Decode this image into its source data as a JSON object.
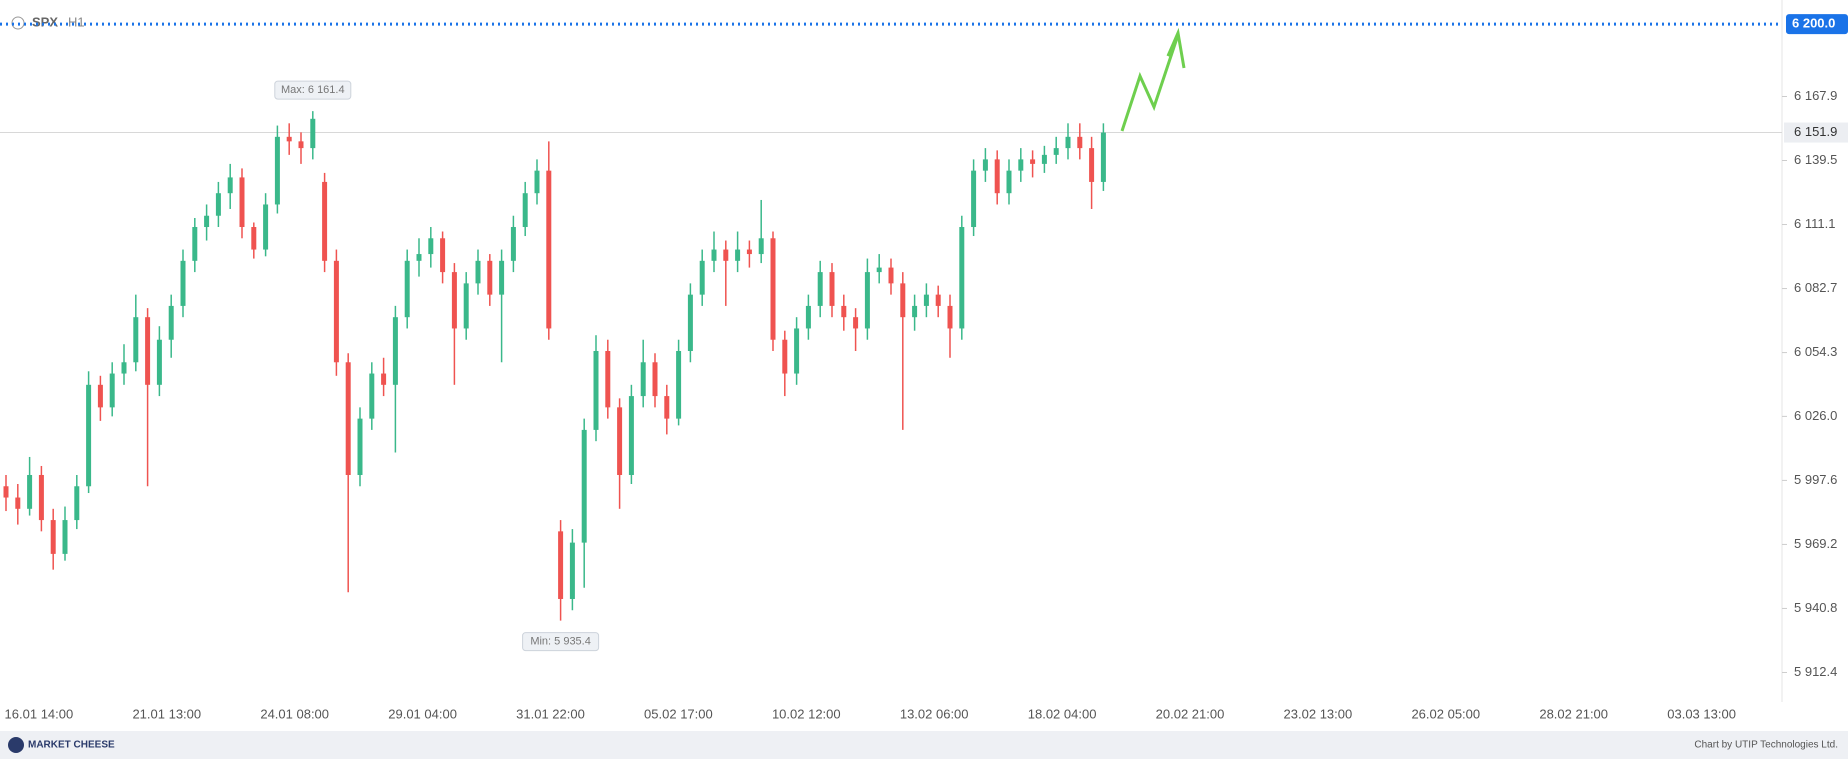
{
  "header": {
    "symbol": "SPX",
    "timeframe": "H1"
  },
  "footer": {
    "logo": "MARKET CHEESE",
    "credit": "Chart by UTIP Technologies Ltd."
  },
  "chart_data": {
    "type": "candlestick",
    "up_color": "#3ab88a",
    "down_color": "#ef5350",
    "ylim": [
      5899.3,
      6210.7
    ],
    "yticks": [
      {
        "value": 5912.4,
        "label": "5 912.4"
      },
      {
        "value": 5940.8,
        "label": "5 940.8"
      },
      {
        "value": 5969.2,
        "label": "5 969.2"
      },
      {
        "value": 5997.6,
        "label": "5 997.6"
      },
      {
        "value": 6026.0,
        "label": "6 026.0"
      },
      {
        "value": 6054.3,
        "label": "6 054.3"
      },
      {
        "value": 6082.7,
        "label": "6 082.7"
      },
      {
        "value": 6111.1,
        "label": "6 111.1"
      },
      {
        "value": 6139.5,
        "label": "6 139.5"
      },
      {
        "value": 6167.9,
        "label": "6 167.9"
      }
    ],
    "x_labels": [
      "16.01 14:00",
      "21.01 13:00",
      "24.01 08:00",
      "29.01 04:00",
      "31.01 22:00",
      "05.02 17:00",
      "10.02 12:00",
      "13.02 06:00",
      "18.02 04:00",
      "20.02 21:00",
      "23.02 13:00",
      "26.02 05:00",
      "28.02 21:00",
      "03.03 13:00"
    ],
    "level": {
      "value": 6200.0,
      "label": "6 200.0",
      "color": "#1a73e8"
    },
    "last_price": {
      "value": 6151.9,
      "label": "6 151.9"
    },
    "max_label": "Max: 6 161.4",
    "min_label": "Min: 5 935.4",
    "ohlc": [
      [
        5995,
        6000,
        5984,
        5990
      ],
      [
        5990,
        5996,
        5978,
        5985
      ],
      [
        5985,
        6008,
        5982,
        6000
      ],
      [
        6000,
        6004,
        5975,
        5980
      ],
      [
        5980,
        5985,
        5958,
        5965
      ],
      [
        5965,
        5986,
        5962,
        5980
      ],
      [
        5980,
        6000,
        5976,
        5995
      ],
      [
        5995,
        6046,
        5992,
        6040
      ],
      [
        6040,
        6044,
        6024,
        6030
      ],
      [
        6030,
        6050,
        6026,
        6045
      ],
      [
        6045,
        6058,
        6040,
        6050
      ],
      [
        6050,
        6080,
        6046,
        6070
      ],
      [
        6070,
        6074,
        5995,
        6040
      ],
      [
        6040,
        6066,
        6035,
        6060
      ],
      [
        6060,
        6080,
        6052,
        6075
      ],
      [
        6075,
        6100,
        6070,
        6095
      ],
      [
        6095,
        6114,
        6090,
        6110
      ],
      [
        6110,
        6120,
        6104,
        6115
      ],
      [
        6115,
        6130,
        6110,
        6125
      ],
      [
        6125,
        6138,
        6118,
        6132
      ],
      [
        6132,
        6136,
        6105,
        6110
      ],
      [
        6110,
        6112,
        6096,
        6100
      ],
      [
        6100,
        6125,
        6097,
        6120
      ],
      [
        6120,
        6155,
        6116,
        6150
      ],
      [
        6150,
        6156,
        6142,
        6148
      ],
      [
        6148,
        6152,
        6138,
        6145
      ],
      [
        6145,
        6161.4,
        6140,
        6158
      ],
      [
        6130,
        6134,
        6090,
        6095
      ],
      [
        6095,
        6100,
        6044,
        6050
      ],
      [
        6050,
        6054,
        5948,
        6000
      ],
      [
        6000,
        6030,
        5995,
        6025
      ],
      [
        6025,
        6050,
        6020,
        6045
      ],
      [
        6045,
        6052,
        6035,
        6040
      ],
      [
        6040,
        6075,
        6010,
        6070
      ],
      [
        6070,
        6100,
        6065,
        6095
      ],
      [
        6095,
        6105,
        6088,
        6098
      ],
      [
        6098,
        6110,
        6092,
        6105
      ],
      [
        6105,
        6108,
        6085,
        6090
      ],
      [
        6090,
        6094,
        6040,
        6065
      ],
      [
        6065,
        6090,
        6060,
        6085
      ],
      [
        6085,
        6100,
        6080,
        6095
      ],
      [
        6095,
        6098,
        6075,
        6080
      ],
      [
        6080,
        6100,
        6050,
        6095
      ],
      [
        6095,
        6115,
        6090,
        6110
      ],
      [
        6110,
        6130,
        6106,
        6125
      ],
      [
        6125,
        6140,
        6120,
        6135
      ],
      [
        6135,
        6148,
        6060,
        6065
      ],
      [
        5975,
        5980,
        5935.4,
        5945
      ],
      [
        5945,
        5976,
        5940,
        5970
      ],
      [
        5970,
        6025,
        5950,
        6020
      ],
      [
        6020,
        6062,
        6015,
        6055
      ],
      [
        6055,
        6060,
        6025,
        6030
      ],
      [
        6030,
        6034,
        5985,
        6000
      ],
      [
        6000,
        6040,
        5996,
        6035
      ],
      [
        6035,
        6060,
        6030,
        6050
      ],
      [
        6050,
        6054,
        6030,
        6035
      ],
      [
        6035,
        6040,
        6018,
        6025
      ],
      [
        6025,
        6060,
        6022,
        6055
      ],
      [
        6055,
        6085,
        6050,
        6080
      ],
      [
        6080,
        6100,
        6075,
        6095
      ],
      [
        6095,
        6108,
        6090,
        6100
      ],
      [
        6100,
        6104,
        6075,
        6095
      ],
      [
        6095,
        6108,
        6090,
        6100
      ],
      [
        6100,
        6104,
        6092,
        6098
      ],
      [
        6098,
        6122,
        6094,
        6105
      ],
      [
        6105,
        6108,
        6055,
        6060
      ],
      [
        6060,
        6064,
        6035,
        6045
      ],
      [
        6045,
        6070,
        6040,
        6065
      ],
      [
        6065,
        6080,
        6060,
        6075
      ],
      [
        6075,
        6095,
        6070,
        6090
      ],
      [
        6090,
        6094,
        6070,
        6075
      ],
      [
        6075,
        6080,
        6064,
        6070
      ],
      [
        6070,
        6074,
        6055,
        6065
      ],
      [
        6065,
        6096,
        6060,
        6090
      ],
      [
        6090,
        6098,
        6085,
        6092
      ],
      [
        6092,
        6096,
        6080,
        6085
      ],
      [
        6085,
        6090,
        6020,
        6070
      ],
      [
        6070,
        6080,
        6064,
        6075
      ],
      [
        6075,
        6085,
        6070,
        6080
      ],
      [
        6080,
        6084,
        6070,
        6075
      ],
      [
        6075,
        6080,
        6052,
        6065
      ],
      [
        6065,
        6115,
        6060,
        6110
      ],
      [
        6110,
        6140,
        6106,
        6135
      ],
      [
        6135,
        6145,
        6130,
        6140
      ],
      [
        6140,
        6144,
        6120,
        6125
      ],
      [
        6125,
        6140,
        6120,
        6135
      ],
      [
        6135,
        6145,
        6130,
        6140
      ],
      [
        6140,
        6144,
        6132,
        6138
      ],
      [
        6138,
        6146,
        6134,
        6142
      ],
      [
        6142,
        6150,
        6138,
        6145
      ],
      [
        6145,
        6156,
        6140,
        6150
      ],
      [
        6150,
        6156,
        6140,
        6145
      ],
      [
        6145,
        6150,
        6118,
        6130
      ],
      [
        6130,
        6156,
        6126,
        6151.9
      ]
    ]
  }
}
